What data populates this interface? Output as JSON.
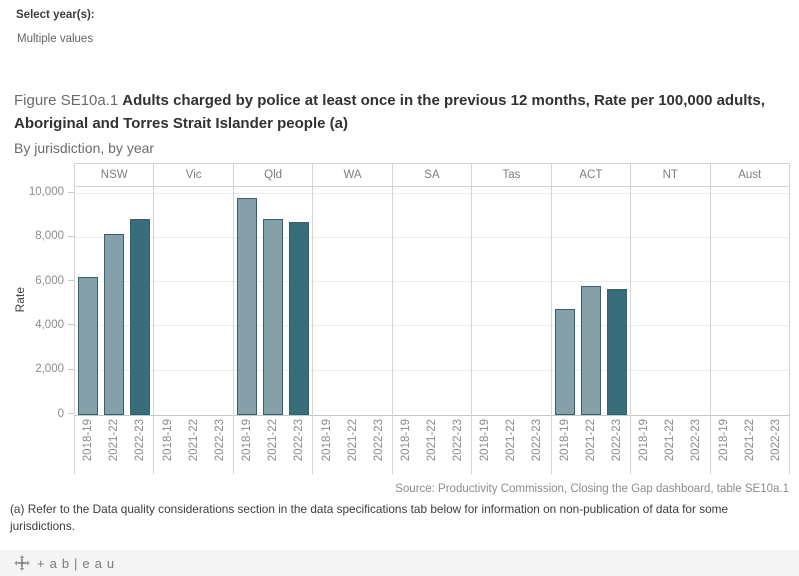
{
  "filter": {
    "label": "Select year(s):",
    "value": "Multiple values"
  },
  "title": {
    "figure_label": "Figure SE10a.1",
    "main": "Adults charged by police at least once in the previous 12 months, Rate per 100,000 adults, Aboriginal and Torres Strait Islander people (a)",
    "subtitle": "By jurisdiction, by year"
  },
  "source": "Source: Productivity Commission, Closing the Gap dashboard, table SE10a.1",
  "footnote": "(a) Refer to the Data quality considerations section in the data specifications tab below for information on non-publication of data for some jurisdictions.",
  "tableau": {
    "logo_text": "+ab|eau"
  },
  "chart_data": {
    "type": "bar",
    "ylabel": "Rate",
    "ylim": [
      0,
      10300
    ],
    "yticks": [
      0,
      2000,
      4000,
      6000,
      8000,
      10000
    ],
    "ytick_labels": [
      "0",
      "2,000",
      "4,000",
      "6,000",
      "8,000",
      "10,000"
    ],
    "categories": [
      "2018-19",
      "2021-22",
      "2022-23"
    ],
    "facets": [
      {
        "name": "NSW",
        "values": [
          6250,
          8200,
          8850
        ]
      },
      {
        "name": "Vic",
        "values": [
          null,
          null,
          null
        ]
      },
      {
        "name": "Qld",
        "values": [
          9800,
          8850,
          8700
        ]
      },
      {
        "name": "WA",
        "values": [
          null,
          null,
          null
        ]
      },
      {
        "name": "SA",
        "values": [
          null,
          null,
          null
        ]
      },
      {
        "name": "Tas",
        "values": [
          null,
          null,
          null
        ]
      },
      {
        "name": "ACT",
        "values": [
          4800,
          5850,
          5700
        ]
      },
      {
        "name": "NT",
        "values": [
          null,
          null,
          null
        ]
      },
      {
        "name": "Aust",
        "values": [
          null,
          null,
          null
        ]
      }
    ],
    "colors": {
      "2018-19": "#85a0a8",
      "2021-22": "#85a0a8",
      "2022-23": "#3a6d7a",
      "bar_outline": "#2e6373"
    },
    "grid": true,
    "legend": "none"
  }
}
